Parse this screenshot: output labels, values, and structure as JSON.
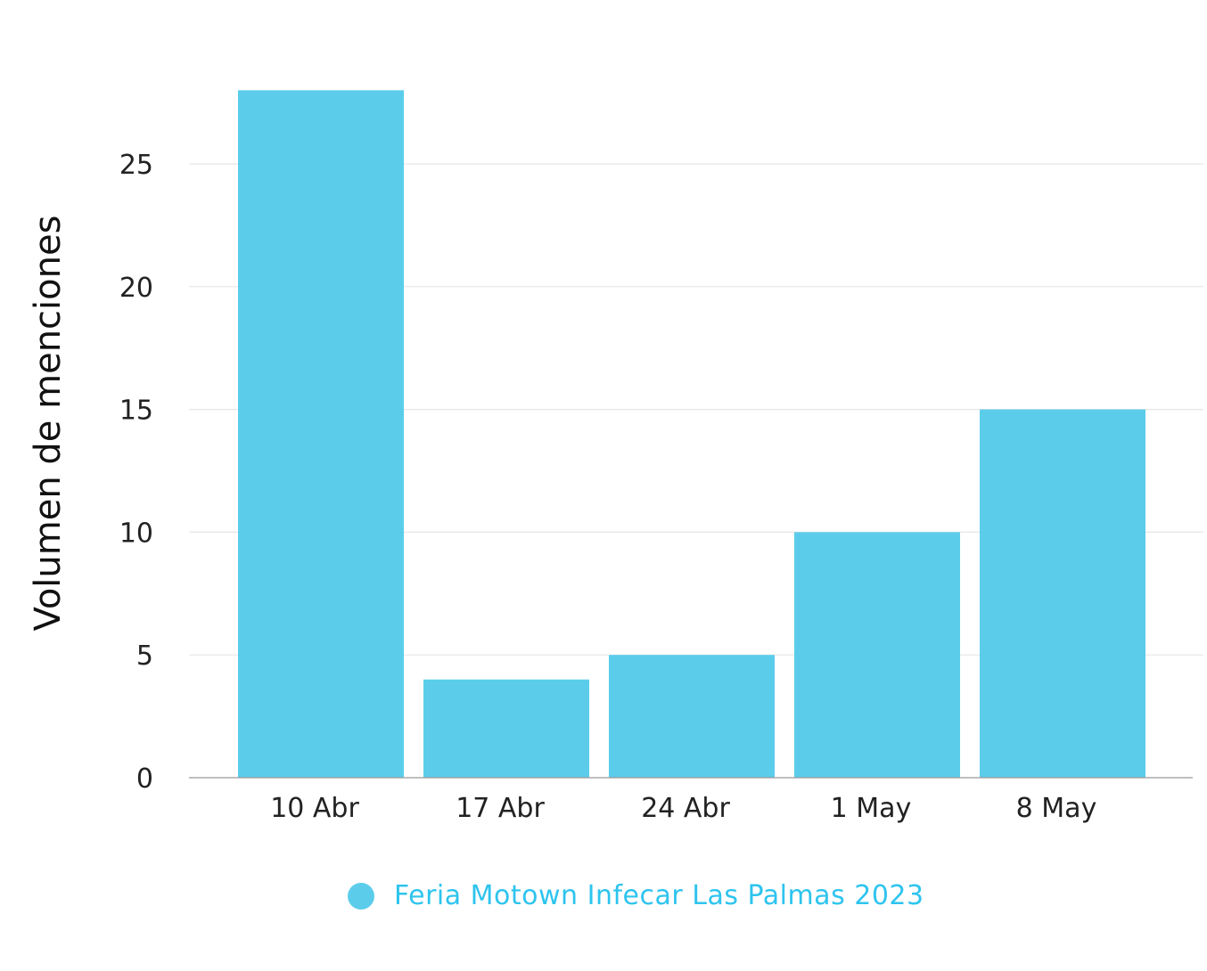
{
  "chart_data": {
    "type": "bar",
    "categories": [
      "10 Abr",
      "17 Abr",
      "24 Abr",
      "1 May",
      "8 May"
    ],
    "series": [
      {
        "name": "Feria Motown Infecar Las Palmas 2023",
        "values": [
          28,
          4,
          5,
          10,
          15
        ]
      }
    ],
    "title": "",
    "xlabel": "",
    "ylabel": "Volumen de menciones",
    "yticks": [
      0,
      5,
      10,
      15,
      20,
      25
    ],
    "ylim": [
      0,
      28
    ],
    "grid": true,
    "legend": "bottom-center",
    "colors": {
      "bar": "#5BCDEB",
      "legend_text": "#2EC4EE",
      "grid": "#E6E6E6",
      "axis": "#999999"
    }
  }
}
